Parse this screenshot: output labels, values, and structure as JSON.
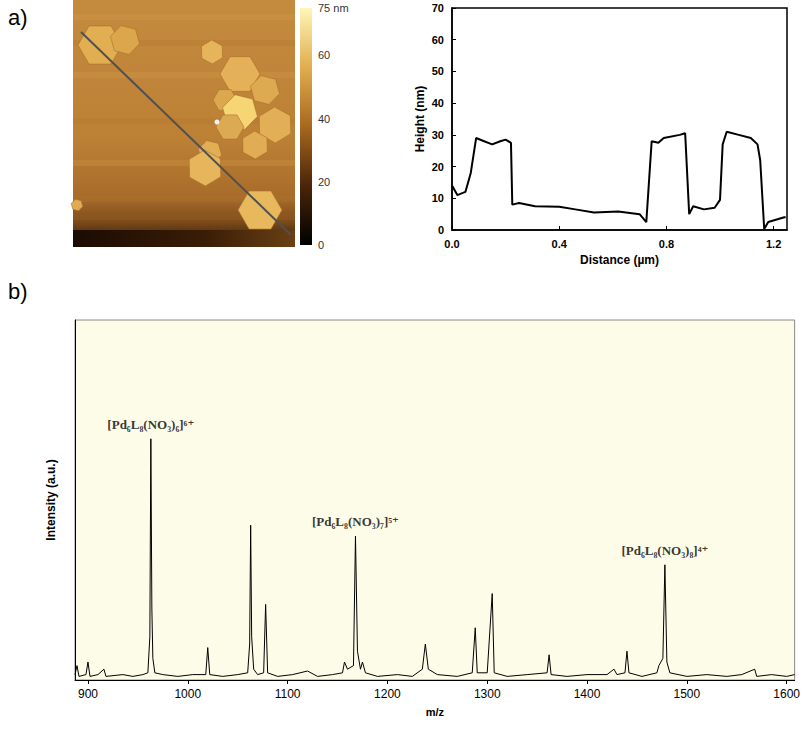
{
  "chart_data": [
    {
      "type": "image",
      "panel": "a)",
      "colorbar": {
        "range": [
          0,
          75
        ],
        "ticks": [
          0,
          20,
          40,
          60,
          {
            "value": 75,
            "label": "75 nm"
          }
        ]
      }
    },
    {
      "type": "line",
      "x": [
        0,
        0.02,
        0.05,
        0.07,
        0.09,
        0.12,
        0.15,
        0.18,
        0.2,
        0.22,
        0.225,
        0.25,
        0.31,
        0.4,
        0.46,
        0.53,
        0.62,
        0.7,
        0.725,
        0.745,
        0.77,
        0.79,
        0.85,
        0.87,
        0.885,
        0.9,
        0.94,
        0.98,
        1.0,
        1.01,
        1.025,
        1.07,
        1.115,
        1.14,
        1.15,
        1.165,
        1.18,
        1.24,
        1.245
      ],
      "values": [
        14,
        11,
        12,
        18,
        29,
        28,
        27,
        28,
        28.5,
        27.5,
        8,
        8.5,
        7.5,
        7.3,
        6.5,
        5.5,
        5.8,
        5,
        2.5,
        28,
        27.5,
        29,
        30,
        30.5,
        5,
        7.5,
        6.5,
        7,
        9.5,
        27,
        31,
        30,
        29,
        27,
        22,
        0.3,
        2.5,
        4,
        4
      ],
      "xlim": [
        0,
        1.25
      ],
      "xticks": [
        {
          "value": 0,
          "label": "0.0"
        },
        {
          "value": 0.4,
          "label": "0.4"
        },
        {
          "value": 0.8,
          "label": "0.8"
        },
        {
          "value": 1.2,
          "label": "1.2"
        }
      ],
      "ylim": [
        0,
        70
      ],
      "yticks": [
        0,
        10,
        20,
        30,
        40,
        50,
        60,
        70
      ],
      "x_label": "Distance (µm)",
      "y_label": "Height (nm)",
      "color": "#000000"
    },
    {
      "type": "line",
      "panel": "b)",
      "x": [
        887,
        889,
        891,
        898,
        900,
        902,
        910,
        916,
        918,
        935,
        945,
        955,
        960,
        962,
        963,
        964,
        965,
        967,
        975,
        990,
        1005,
        1018,
        1020,
        1022,
        1035,
        1050,
        1060,
        1062,
        1063,
        1064,
        1066,
        1070,
        1076,
        1078,
        1080,
        1090,
        1105,
        1120,
        1130,
        1145,
        1155,
        1157,
        1160,
        1166,
        1168,
        1170,
        1173,
        1175,
        1178,
        1190,
        1210,
        1225,
        1235,
        1238,
        1241,
        1250,
        1270,
        1285,
        1288,
        1290,
        1300,
        1305,
        1307,
        1320,
        1340,
        1360,
        1362,
        1364,
        1380,
        1400,
        1420,
        1427,
        1430,
        1438,
        1440,
        1442,
        1455,
        1470,
        1472,
        1476,
        1478,
        1480,
        1483,
        1500,
        1520,
        1540,
        1555,
        1568,
        1570,
        1585,
        1600,
        1608
      ],
      "values": [
        1.5,
        4,
        1,
        1.5,
        5,
        1,
        1.5,
        3,
        1,
        1.5,
        1,
        1.5,
        2,
        12,
        67,
        20,
        6,
        2,
        1.5,
        1,
        1.5,
        1.5,
        9,
        1.5,
        1,
        1.5,
        2,
        10,
        43,
        12,
        3,
        1.5,
        2,
        21,
        2,
        1,
        1.5,
        2.5,
        1,
        1.5,
        2,
        5,
        3,
        4,
        40,
        8,
        3,
        5,
        2,
        1,
        1.5,
        1,
        3,
        10,
        3,
        1.5,
        1,
        2,
        14.5,
        2,
        2,
        24,
        2,
        1,
        1.5,
        2,
        7,
        1.5,
        1,
        1.5,
        1.5,
        3,
        1.5,
        2,
        8,
        2,
        1,
        2,
        4,
        6,
        32,
        5,
        2,
        1,
        1.5,
        1,
        1.5,
        3,
        1,
        1.5,
        1,
        1.5
      ],
      "xlim": [
        887,
        1608
      ],
      "xticks": [
        900,
        1000,
        1100,
        1200,
        1300,
        1400,
        1500,
        1600
      ],
      "ylim": [
        0,
        100
      ],
      "tick_labels": "x",
      "x_label": "m/z",
      "y_label": "Intensity (a.u.)",
      "color": "#000000",
      "peak_labels": [
        {
          "x": 963,
          "text": "[Pd₆L₈(NO₃)₆]⁶⁺"
        },
        {
          "x": 1168,
          "text": "[Pd₆L₈(NO₃)₇]⁵⁺"
        },
        {
          "x": 1478,
          "text": "[Pd₆L₈(NO₃)₈]⁴⁺"
        }
      ]
    }
  ]
}
